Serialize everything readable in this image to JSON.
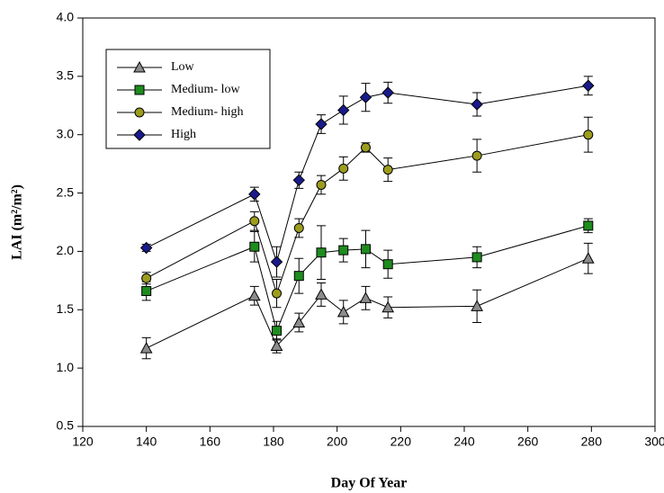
{
  "chart_data": {
    "type": "line",
    "xlabel": "Day Of Year",
    "ylabel": "LAI (m²/m²)",
    "x": [
      140,
      174,
      181,
      188,
      195,
      202,
      209,
      216,
      244,
      279
    ],
    "xlim": [
      120,
      300
    ],
    "xticks": [
      120,
      140,
      160,
      180,
      200,
      220,
      240,
      260,
      280,
      300
    ],
    "ylim": [
      0.5,
      4.0
    ],
    "yticks": [
      0.5,
      {
        "value": 1,
        "label": "1.0"
      },
      1.5,
      {
        "value": 2,
        "label": "2.0"
      },
      2.5,
      {
        "value": 3,
        "label": "3.0"
      },
      3.5,
      {
        "value": 4,
        "label": "4.0"
      }
    ],
    "legend": "upper-left",
    "series": [
      {
        "name": "Low",
        "color": "#8c8c8c",
        "marker": "triangle",
        "values": [
          1.17,
          1.62,
          1.19,
          1.39,
          1.63,
          1.48,
          1.6,
          1.52,
          1.53,
          1.94
        ],
        "errors": [
          0.09,
          0.08,
          0.06,
          0.08,
          0.1,
          0.1,
          0.1,
          0.09,
          0.14,
          0.13
        ]
      },
      {
        "name": "Medium- low",
        "color": "#1e8c1e",
        "marker": "square",
        "values": [
          1.66,
          2.04,
          1.32,
          1.79,
          1.99,
          2.01,
          2.02,
          1.89,
          1.95,
          2.22
        ],
        "errors": [
          0.08,
          0.13,
          0.08,
          0.15,
          0.23,
          0.1,
          0.16,
          0.12,
          0.09,
          0.06
        ]
      },
      {
        "name": "Medium- high",
        "color": "#9c9c1e",
        "marker": "circle",
        "values": [
          1.77,
          2.26,
          1.64,
          2.2,
          2.57,
          2.71,
          2.89,
          2.7,
          2.82,
          3.0
        ],
        "errors": [
          0.05,
          0.08,
          0.12,
          0.08,
          0.08,
          0.1,
          0.04,
          0.1,
          0.14,
          0.15
        ]
      },
      {
        "name": "High",
        "color": "#1a1a8c",
        "marker": "diamond",
        "values": [
          2.03,
          2.49,
          1.91,
          2.61,
          3.09,
          3.21,
          3.32,
          3.36,
          3.26,
          3.42
        ],
        "errors": [
          0.03,
          0.06,
          0.13,
          0.07,
          0.08,
          0.12,
          0.12,
          0.09,
          0.1,
          0.08
        ]
      }
    ]
  }
}
